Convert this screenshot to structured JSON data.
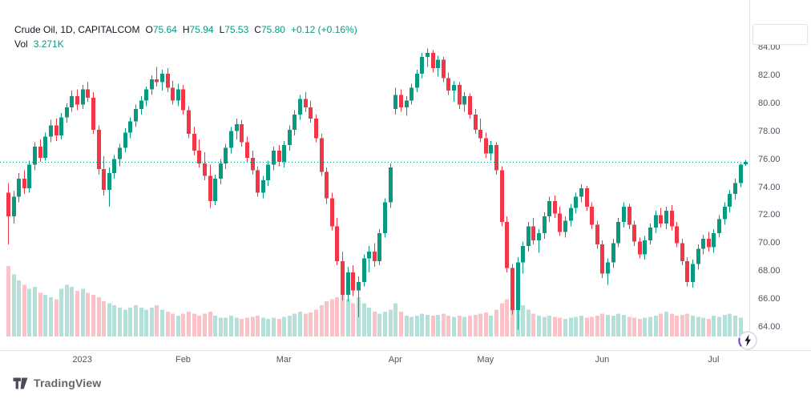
{
  "legend": {
    "symbol_line": "Crude Oil, 1D, CAPITALCOM",
    "ohlc_pairs": [
      {
        "k": "O",
        "v": "75.64"
      },
      {
        "k": "H",
        "v": "75.94"
      },
      {
        "k": "L",
        "v": "75.53"
      },
      {
        "k": "C",
        "v": "75.80"
      }
    ],
    "change": "+0.12 (+0.16%)",
    "volume": {
      "label": "Vol",
      "value": "3.271K"
    }
  },
  "footer": {
    "brand": "TradingView"
  },
  "icons": {
    "lightning_button": "lightning-bolt",
    "brand_logo": "tradingview-mark"
  },
  "colors": {
    "up": "#089981",
    "down": "#f23645",
    "vol_up": "rgba(8,153,129,0.30)",
    "vol_down": "rgba(242,54,69,0.30)",
    "axis_text": "#50535e",
    "separator": "#e0e3eb",
    "last_price_line": "#089981"
  },
  "chart_data": {
    "type": "candlestick",
    "title": "Crude Oil, 1D, CAPITALCOM",
    "symbol": "Crude Oil",
    "interval": "1D",
    "exchange": "CAPITALCOM",
    "ohlc_current": {
      "open": 75.64,
      "high": 75.94,
      "low": 75.53,
      "close": 75.8,
      "change": 0.12,
      "change_pct": 0.16
    },
    "volume_current_label": "3.271K",
    "last_price_line": 75.8,
    "y_axis": {
      "ticks": [
        84,
        82,
        80,
        78,
        76,
        74,
        72,
        70,
        68,
        66,
        64
      ],
      "format": "0.00",
      "side": "right"
    },
    "x_axis": {
      "ticks": [
        {
          "label": "2023",
          "bar": 14
        },
        {
          "label": "Feb",
          "bar": 33
        },
        {
          "label": "Mar",
          "bar": 52
        },
        {
          "label": "Apr",
          "bar": 73
        },
        {
          "label": "May",
          "bar": 90
        },
        {
          "label": "Jun",
          "bar": 112
        },
        {
          "label": "Jul",
          "bar": 133
        }
      ]
    },
    "grid": false,
    "bars_unit": "[open, high, low, close, volume_k]",
    "bars": [
      [
        73.6,
        74.3,
        69.9,
        71.9,
        340
      ],
      [
        71.9,
        73.7,
        71.4,
        73.3,
        300
      ],
      [
        73.3,
        75.0,
        72.9,
        74.6,
        270
      ],
      [
        74.6,
        75.2,
        73.5,
        73.9,
        250
      ],
      [
        73.9,
        75.9,
        73.6,
        75.6,
        230
      ],
      [
        75.6,
        77.2,
        75.2,
        76.9,
        240
      ],
      [
        76.9,
        77.4,
        75.8,
        76.1,
        210
      ],
      [
        76.1,
        77.9,
        75.9,
        77.6,
        200
      ],
      [
        77.6,
        78.8,
        77.2,
        78.4,
        190
      ],
      [
        78.4,
        78.9,
        77.3,
        77.7,
        180
      ],
      [
        77.7,
        79.3,
        77.4,
        79.0,
        230
      ],
      [
        79.0,
        80.0,
        78.6,
        79.7,
        250
      ],
      [
        79.7,
        80.9,
        79.4,
        80.5,
        240
      ],
      [
        80.5,
        81.0,
        79.5,
        79.9,
        220
      ],
      [
        79.9,
        81.3,
        79.6,
        81.0,
        230
      ],
      [
        81.0,
        81.5,
        80.1,
        80.4,
        210
      ],
      [
        80.4,
        80.8,
        77.8,
        78.1,
        200
      ],
      [
        78.1,
        78.4,
        74.9,
        75.3,
        190
      ],
      [
        75.3,
        76.2,
        73.4,
        73.8,
        170
      ],
      [
        73.8,
        75.4,
        72.6,
        75.0,
        160
      ],
      [
        75.0,
        76.3,
        74.6,
        76.0,
        150
      ],
      [
        76.0,
        77.1,
        75.5,
        76.8,
        140
      ],
      [
        76.8,
        78.2,
        76.5,
        77.9,
        130
      ],
      [
        77.9,
        79.0,
        77.5,
        78.7,
        140
      ],
      [
        78.7,
        79.9,
        78.3,
        79.6,
        150
      ],
      [
        79.6,
        80.5,
        79.2,
        80.2,
        140
      ],
      [
        80.2,
        81.2,
        79.8,
        81.0,
        130
      ],
      [
        81.0,
        82.0,
        80.6,
        81.7,
        140
      ],
      [
        81.7,
        82.6,
        81.2,
        81.5,
        150
      ],
      [
        81.5,
        82.4,
        80.9,
        82.1,
        130
      ],
      [
        82.1,
        82.5,
        80.8,
        81.1,
        120
      ],
      [
        81.1,
        81.6,
        79.9,
        80.2,
        110
      ],
      [
        80.2,
        81.4,
        79.8,
        81.0,
        100
      ],
      [
        81.0,
        81.3,
        79.2,
        79.5,
        110
      ],
      [
        79.5,
        79.8,
        77.5,
        77.8,
        120
      ],
      [
        77.8,
        78.3,
        76.3,
        76.6,
        110
      ],
      [
        76.6,
        77.4,
        75.4,
        75.7,
        100
      ],
      [
        75.7,
        76.5,
        74.5,
        74.8,
        110
      ],
      [
        74.8,
        75.6,
        72.5,
        73.0,
        120
      ],
      [
        73.0,
        74.9,
        72.7,
        74.6,
        100
      ],
      [
        74.6,
        76.0,
        74.2,
        75.7,
        90
      ],
      [
        75.7,
        77.1,
        75.3,
        76.8,
        90
      ],
      [
        76.8,
        78.3,
        76.4,
        78.0,
        100
      ],
      [
        78.0,
        78.9,
        77.4,
        78.5,
        90
      ],
      [
        78.5,
        78.8,
        76.9,
        77.2,
        85
      ],
      [
        77.2,
        77.6,
        75.8,
        76.1,
        90
      ],
      [
        76.1,
        76.6,
        74.9,
        75.2,
        95
      ],
      [
        75.2,
        75.5,
        73.3,
        73.6,
        100
      ],
      [
        73.6,
        74.8,
        73.2,
        74.5,
        90
      ],
      [
        74.5,
        75.9,
        74.1,
        75.6,
        85
      ],
      [
        75.6,
        76.9,
        75.2,
        76.6,
        90
      ],
      [
        76.6,
        77.0,
        75.5,
        75.8,
        85
      ],
      [
        75.8,
        77.3,
        75.4,
        77.0,
        95
      ],
      [
        77.0,
        78.4,
        76.6,
        78.1,
        100
      ],
      [
        78.1,
        79.5,
        77.7,
        79.2,
        110
      ],
      [
        79.2,
        80.6,
        78.8,
        80.3,
        120
      ],
      [
        80.3,
        80.8,
        79.4,
        79.7,
        110
      ],
      [
        79.7,
        80.2,
        78.6,
        78.9,
        115
      ],
      [
        78.9,
        79.2,
        77.2,
        77.5,
        130
      ],
      [
        77.5,
        77.8,
        74.8,
        75.1,
        150
      ],
      [
        75.1,
        75.4,
        72.8,
        73.2,
        170
      ],
      [
        73.2,
        73.6,
        70.9,
        71.2,
        180
      ],
      [
        71.2,
        71.8,
        68.4,
        68.7,
        190
      ],
      [
        68.7,
        69.4,
        65.9,
        66.3,
        200
      ],
      [
        66.3,
        68.3,
        65.8,
        67.9,
        180
      ],
      [
        67.9,
        68.4,
        66.2,
        66.6,
        160
      ],
      [
        66.6,
        67.6,
        64.7,
        67.2,
        190
      ],
      [
        67.2,
        69.2,
        66.9,
        68.9,
        160
      ],
      [
        68.9,
        69.8,
        67.9,
        69.4,
        140
      ],
      [
        69.4,
        70.0,
        68.3,
        68.7,
        120
      ],
      [
        68.7,
        71.0,
        68.4,
        70.7,
        110
      ],
      [
        70.7,
        73.2,
        70.4,
        72.9,
        120
      ],
      [
        72.9,
        75.7,
        72.5,
        75.4,
        130
      ],
      [
        79.6,
        81.1,
        79.2,
        80.6,
        160
      ],
      [
        80.6,
        81.0,
        79.4,
        79.7,
        120
      ],
      [
        79.7,
        80.5,
        79.1,
        80.2,
        100
      ],
      [
        80.2,
        81.4,
        79.9,
        81.1,
        95
      ],
      [
        81.1,
        82.4,
        80.8,
        82.1,
        100
      ],
      [
        82.1,
        83.6,
        81.8,
        83.3,
        110
      ],
      [
        83.3,
        83.9,
        82.6,
        83.6,
        105
      ],
      [
        83.6,
        83.8,
        82.2,
        82.5,
        100
      ],
      [
        82.5,
        83.4,
        81.9,
        83.1,
        105
      ],
      [
        83.1,
        83.3,
        81.5,
        81.8,
        110
      ],
      [
        81.8,
        82.2,
        80.6,
        80.9,
        100
      ],
      [
        80.9,
        81.6,
        80.1,
        81.3,
        95
      ],
      [
        81.3,
        81.5,
        79.6,
        79.9,
        100
      ],
      [
        79.9,
        80.8,
        79.4,
        80.5,
        95
      ],
      [
        80.5,
        80.7,
        78.9,
        79.2,
        100
      ],
      [
        79.2,
        79.6,
        77.8,
        78.1,
        105
      ],
      [
        78.1,
        78.9,
        77.2,
        77.5,
        110
      ],
      [
        77.5,
        77.9,
        76.1,
        76.4,
        115
      ],
      [
        76.4,
        77.3,
        75.9,
        77.0,
        100
      ],
      [
        77.0,
        77.2,
        74.9,
        75.2,
        130
      ],
      [
        75.2,
        75.5,
        71.2,
        71.5,
        160
      ],
      [
        71.5,
        71.9,
        67.9,
        68.2,
        180
      ],
      [
        68.2,
        68.5,
        64.9,
        65.2,
        200
      ],
      [
        65.2,
        69.0,
        63.8,
        68.6,
        190
      ],
      [
        68.6,
        70.1,
        67.8,
        69.8,
        150
      ],
      [
        69.8,
        71.5,
        69.4,
        71.2,
        130
      ],
      [
        71.2,
        71.8,
        69.9,
        70.2,
        110
      ],
      [
        70.2,
        71.0,
        69.3,
        70.7,
        100
      ],
      [
        70.7,
        72.2,
        70.3,
        71.9,
        95
      ],
      [
        71.9,
        73.3,
        71.5,
        73.0,
        100
      ],
      [
        73.0,
        73.4,
        71.8,
        72.1,
        95
      ],
      [
        72.1,
        72.6,
        70.5,
        70.8,
        90
      ],
      [
        70.8,
        71.9,
        70.4,
        71.6,
        85
      ],
      [
        71.6,
        72.8,
        71.2,
        72.5,
        90
      ],
      [
        72.5,
        73.6,
        72.1,
        73.3,
        95
      ],
      [
        73.3,
        74.2,
        72.9,
        73.9,
        100
      ],
      [
        73.9,
        74.1,
        72.3,
        72.6,
        90
      ],
      [
        72.6,
        72.9,
        71.0,
        71.3,
        95
      ],
      [
        71.3,
        71.6,
        69.6,
        69.9,
        100
      ],
      [
        69.9,
        70.2,
        67.5,
        67.8,
        110
      ],
      [
        67.8,
        68.9,
        67.0,
        68.6,
        105
      ],
      [
        68.6,
        70.3,
        68.2,
        70.0,
        100
      ],
      [
        70.0,
        71.8,
        69.7,
        71.5,
        110
      ],
      [
        71.5,
        72.9,
        71.1,
        72.6,
        105
      ],
      [
        72.6,
        72.8,
        71.0,
        71.3,
        95
      ],
      [
        71.3,
        71.6,
        69.8,
        70.1,
        90
      ],
      [
        70.1,
        70.4,
        68.9,
        69.2,
        85
      ],
      [
        69.2,
        70.5,
        68.8,
        70.2,
        90
      ],
      [
        70.2,
        71.4,
        69.9,
        71.1,
        95
      ],
      [
        71.1,
        72.3,
        70.7,
        72.0,
        100
      ],
      [
        72.0,
        72.5,
        71.1,
        71.4,
        110
      ],
      [
        71.4,
        72.6,
        71.0,
        72.3,
        120
      ],
      [
        72.3,
        72.7,
        70.9,
        71.2,
        110
      ],
      [
        71.2,
        71.5,
        69.7,
        70.0,
        100
      ],
      [
        70.0,
        70.3,
        68.4,
        68.7,
        105
      ],
      [
        68.7,
        69.0,
        66.9,
        67.2,
        110
      ],
      [
        67.2,
        68.8,
        66.8,
        68.5,
        100
      ],
      [
        68.5,
        69.9,
        68.1,
        69.6,
        95
      ],
      [
        69.6,
        70.6,
        69.2,
        70.3,
        90
      ],
      [
        70.3,
        70.8,
        69.4,
        69.7,
        85
      ],
      [
        69.7,
        71.0,
        69.3,
        70.7,
        100
      ],
      [
        70.7,
        72.0,
        70.4,
        71.7,
        95
      ],
      [
        71.7,
        72.9,
        71.3,
        72.6,
        105
      ],
      [
        72.6,
        73.8,
        72.2,
        73.5,
        110
      ],
      [
        73.5,
        74.6,
        73.1,
        74.3,
        100
      ],
      [
        74.3,
        75.7,
        74.0,
        75.6,
        90
      ],
      [
        75.64,
        75.94,
        75.53,
        75.8,
        3.271
      ]
    ]
  }
}
